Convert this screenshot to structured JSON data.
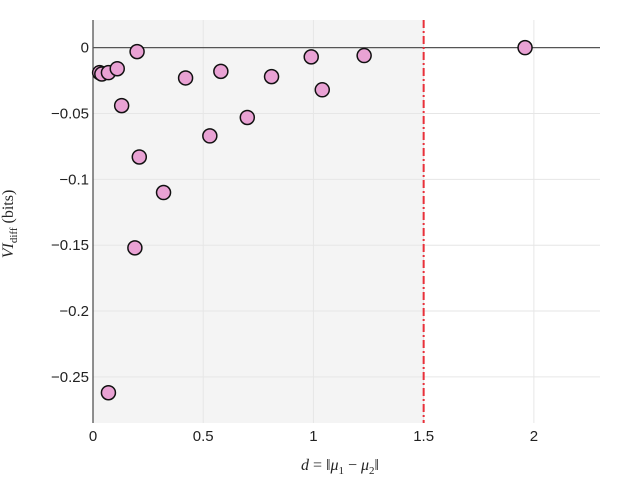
{
  "chart_data": {
    "type": "scatter",
    "title": "",
    "xlabel": {
      "lhs": "d",
      "eq": " = ‖",
      "mu": "μ",
      "sub1": "1",
      "minus": " − ",
      "sub2": "2",
      "close": "‖"
    },
    "ylabel": {
      "sym": "VI",
      "sub": "diff",
      "unit": " (bits)"
    },
    "xlim": [
      0,
      2.3
    ],
    "ylim": [
      -0.285,
      0.021
    ],
    "xticks": [
      0,
      0.5,
      1,
      1.5,
      2
    ],
    "xtick_labels": [
      "0",
      "0.5",
      "1",
      "1.5",
      "2"
    ],
    "yticks": [
      0,
      -0.05,
      -0.1,
      -0.15,
      -0.2,
      -0.25
    ],
    "ytick_labels": [
      "0",
      "−0.05",
      "−0.1",
      "−0.15",
      "−0.2",
      "−0.25"
    ],
    "grid": true,
    "shaded_region_x": [
      0,
      1.5
    ],
    "vertical_line_x": 1.5,
    "horizontal_line_y": 0,
    "colors": {
      "marker_fill": "#e9a2d4",
      "marker_edge": "#111111",
      "shade": "#f4f4f4",
      "vline": "#e8303a",
      "hline": "#555555",
      "grid": "#e6e6e6"
    },
    "series": [
      {
        "x": [
          0.03,
          0.04,
          0.07,
          0.11,
          0.13,
          0.2,
          0.21,
          0.19,
          0.32,
          0.07,
          0.42,
          0.53,
          0.58,
          0.7,
          0.81,
          0.99,
          1.04,
          1.23,
          1.96
        ],
        "y": [
          -0.019,
          -0.02,
          -0.019,
          -0.016,
          -0.044,
          -0.003,
          -0.083,
          -0.152,
          -0.11,
          -0.262,
          -0.023,
          -0.067,
          -0.018,
          -0.053,
          -0.022,
          -0.007,
          -0.032,
          -0.006,
          0.0
        ]
      }
    ]
  }
}
